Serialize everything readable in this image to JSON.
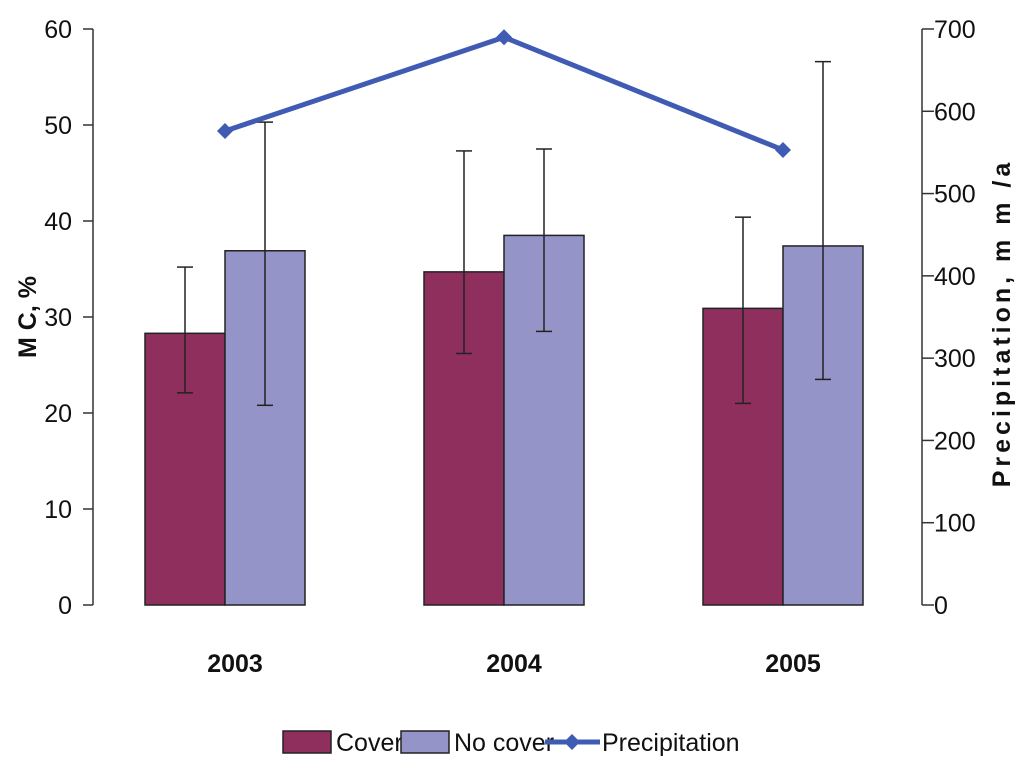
{
  "chart_data": {
    "type": "bar",
    "categories": [
      "2003",
      "2004",
      "2005"
    ],
    "series": [
      {
        "name": "Cover",
        "axis": "left",
        "color": "#8e2f5e",
        "values": [
          28.3,
          34.7,
          30.9
        ],
        "error_upper": [
          35.2,
          47.3,
          40.4
        ],
        "error_lower": [
          22.1,
          26.2,
          21.0
        ]
      },
      {
        "name": "No cover",
        "axis": "left",
        "color": "#9494c8",
        "values": [
          36.9,
          38.5,
          37.4
        ],
        "error_upper": [
          50.3,
          47.5,
          56.6
        ],
        "error_lower": [
          20.8,
          28.5,
          23.5
        ]
      },
      {
        "name": "Precipitation",
        "axis": "right",
        "type": "line",
        "marker": "diamond",
        "color": "#3f5bb3",
        "values": [
          576,
          690,
          553
        ]
      }
    ],
    "ylabel": "M C, %",
    "y2label": "Precipitation, m m /a",
    "ylim": [
      0,
      60
    ],
    "y2lim": [
      0,
      700
    ],
    "yticks": [
      0,
      10,
      20,
      30,
      40,
      50,
      60
    ],
    "y2ticks": [
      0,
      100,
      200,
      300,
      400,
      500,
      600,
      700
    ],
    "grid": false,
    "legend_placement": "bottom-center"
  }
}
